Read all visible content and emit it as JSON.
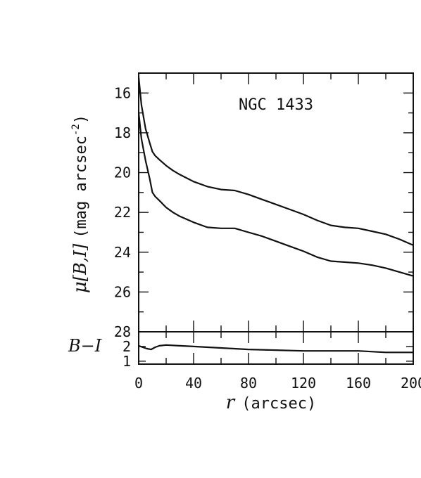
{
  "chart_data": [
    {
      "panel": "surface-brightness",
      "type": "line",
      "title": "NGC 1433",
      "ylabel_symbol": "μ",
      "ylabel_bands": "[B,I]",
      "ylabel_units": "(mag arcsec",
      "ylabel_units_exp": "-2",
      "ylabel_units_close": ")",
      "ylim": [
        28,
        15
      ],
      "xlim": [
        0,
        200
      ],
      "yticks": [
        16,
        18,
        20,
        22,
        24,
        26,
        28
      ],
      "grid": false,
      "series": [
        {
          "x": [
            0,
            2,
            5,
            8,
            10,
            12,
            15,
            20,
            25,
            30,
            40,
            50,
            60,
            70,
            80,
            90,
            100,
            110,
            120,
            130,
            140,
            150,
            160,
            170,
            180,
            190,
            200
          ],
          "y": [
            15.2,
            16.6,
            17.8,
            18.5,
            18.95,
            19.15,
            19.35,
            19.65,
            19.9,
            20.1,
            20.45,
            20.7,
            20.85,
            20.9,
            21.1,
            21.35,
            21.6,
            21.85,
            22.1,
            22.4,
            22.65,
            22.75,
            22.8,
            22.95,
            23.1,
            23.35,
            23.65
          ]
        },
        {
          "x": [
            0,
            2,
            5,
            8,
            10,
            12,
            15,
            20,
            25,
            30,
            40,
            50,
            60,
            70,
            80,
            90,
            100,
            110,
            120,
            130,
            140,
            150,
            160,
            170,
            180,
            190,
            200
          ],
          "y": [
            17.0,
            18.3,
            19.4,
            20.3,
            21.0,
            21.2,
            21.4,
            21.75,
            22.0,
            22.2,
            22.5,
            22.75,
            22.8,
            22.8,
            23.0,
            23.2,
            23.45,
            23.7,
            23.95,
            24.25,
            24.45,
            24.5,
            24.55,
            24.65,
            24.8,
            25.0,
            25.2
          ]
        }
      ]
    },
    {
      "panel": "color-profile",
      "type": "line",
      "ylabel": "B−I",
      "xlabel_symbol": "r",
      "xlabel_units": "(arcsec)",
      "ylim": [
        0.8,
        3.0
      ],
      "xlim": [
        0,
        200
      ],
      "yticks": [
        1,
        2
      ],
      "xticks": [
        0,
        40,
        80,
        120,
        160,
        200
      ],
      "grid": false,
      "series": [
        {
          "x": [
            0,
            3,
            6,
            9,
            12,
            15,
            20,
            30,
            40,
            60,
            80,
            100,
            120,
            140,
            160,
            180,
            200
          ],
          "y": [
            2.05,
            1.95,
            1.85,
            1.8,
            1.95,
            2.05,
            2.1,
            2.05,
            2.0,
            1.9,
            1.8,
            1.75,
            1.7,
            1.7,
            1.7,
            1.6,
            1.6
          ]
        }
      ]
    }
  ]
}
